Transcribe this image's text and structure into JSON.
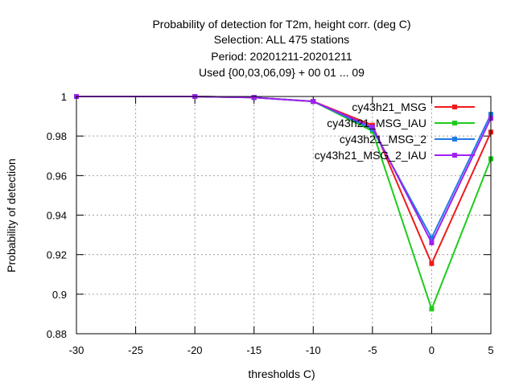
{
  "chart_data": {
    "type": "line",
    "title": [
      "Probability of detection  for T2m, height corr. (deg C)",
      "Selection: ALL    475 stations",
      "Period: 20201211-20201211",
      "Used {00,03,06,09} + 00 01 ... 09"
    ],
    "xlabel": "thresholds C)",
    "ylabel": "Probability of detection",
    "xlim": [
      -30,
      5
    ],
    "ylim": [
      0.88,
      1.0
    ],
    "xticks": [
      -30,
      -25,
      -20,
      -15,
      -10,
      -5,
      0,
      5
    ],
    "yticks": [
      0.88,
      0.9,
      0.92,
      0.94,
      0.96,
      0.98,
      1.0
    ],
    "ytick_labels": [
      "0.88",
      "0.9",
      "0.92",
      "0.94",
      "0.96",
      "0.98",
      "1"
    ],
    "grid": true,
    "legend_position": "top-right",
    "x": [
      -30,
      -20,
      -15,
      -10,
      -5,
      0,
      5
    ],
    "series": [
      {
        "name": "cy43h21_MSG",
        "color": "#ee1c1c",
        "values": [
          1.0,
          1.0,
          0.9995,
          0.9975,
          0.9855,
          0.9155,
          0.982
        ]
      },
      {
        "name": "cy43h21_MSG_IAU",
        "color": "#1ecc1e",
        "values": [
          1.0,
          1.0,
          0.9995,
          0.9975,
          0.9825,
          0.8925,
          0.9685
        ]
      },
      {
        "name": "cy43h21_MSG_2",
        "color": "#1e7be6",
        "values": [
          1.0,
          1.0,
          0.9995,
          0.9975,
          0.9835,
          0.9285,
          0.991
        ]
      },
      {
        "name": "cy43h21_MSG_2_IAU",
        "color": "#a020f0",
        "values": [
          1.0,
          1.0,
          0.9995,
          0.9975,
          0.9845,
          0.926,
          0.989
        ]
      }
    ]
  }
}
